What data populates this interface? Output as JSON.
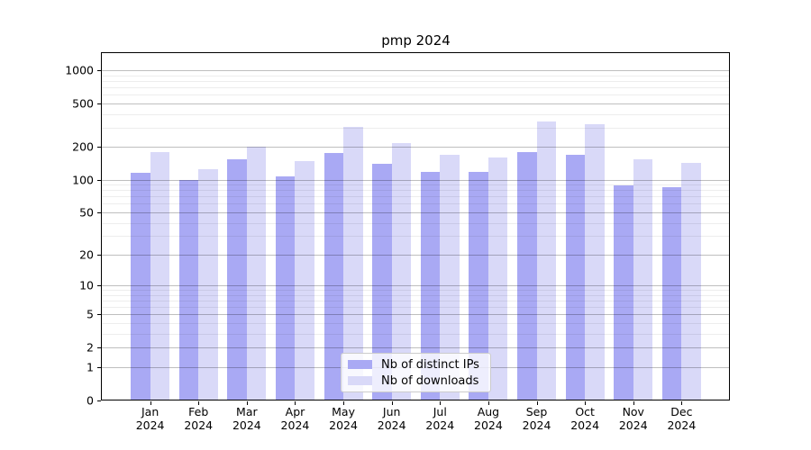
{
  "chart_data": {
    "type": "bar",
    "title": "pmp 2024",
    "categories": [
      "Jan",
      "Feb",
      "Mar",
      "Apr",
      "May",
      "Jun",
      "Jul",
      "Aug",
      "Sep",
      "Oct",
      "Nov",
      "Dec"
    ],
    "x_tick_year": "2024",
    "series": [
      {
        "name": "Nb of distinct IPs",
        "color": "#a9a9f4",
        "values": [
          115,
          100,
          154,
          108,
          177,
          141,
          118,
          118,
          179,
          169,
          88,
          85
        ]
      },
      {
        "name": "Nb of downloads",
        "color": "#d9d9f8",
        "values": [
          180,
          125,
          202,
          149,
          306,
          218,
          170,
          161,
          343,
          322,
          153,
          142
        ]
      }
    ],
    "yscale": "log10(1+y)",
    "y_ticks": [
      0,
      1,
      2,
      5,
      10,
      20,
      50,
      100,
      200,
      500,
      1000
    ],
    "y_tick_labels": [
      "0",
      "1",
      "2",
      "5",
      "10",
      "20",
      "50",
      "100",
      "200",
      "500",
      "1000"
    ],
    "y_minor_ticks": [
      3,
      4,
      6,
      7,
      8,
      9,
      30,
      40,
      60,
      70,
      80,
      90,
      300,
      400,
      600,
      700,
      800,
      900
    ],
    "ylim": [
      0,
      1450
    ],
    "grid": "both",
    "legend": {
      "location": "lower center",
      "labels": [
        "Nb of distinct IPs",
        "Nb of downloads"
      ]
    }
  }
}
